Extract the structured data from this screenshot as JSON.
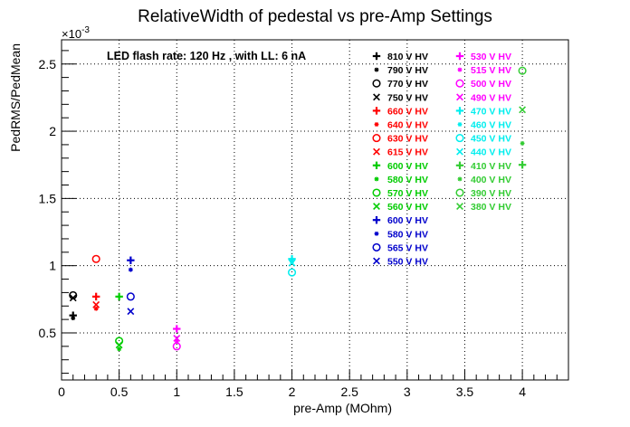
{
  "chart_data": {
    "type": "scatter",
    "title": "RelativeWidth of pedestal vs pre-Amp Settings",
    "xlabel": "pre-Amp (MOhm)",
    "ylabel": "PedRMS/PedMean",
    "y_exponent_label": "×10",
    "y_exponent_power": "-3",
    "annotation": "LED flash rate: 120 Hz , with LL: 6 nA",
    "xlim": [
      0,
      4.4
    ],
    "ylim": [
      0.15,
      2.68
    ],
    "x_ticks": [
      0,
      0.5,
      1,
      1.5,
      2,
      2.5,
      3,
      3.5,
      4
    ],
    "x_tick_labels": [
      "0",
      "0.5",
      "1",
      "1.5",
      "2",
      "2.5",
      "3",
      "3.5",
      "4"
    ],
    "y_ticks": [
      0.5,
      1,
      1.5,
      2,
      2.5
    ],
    "y_tick_labels": [
      "0.5",
      "1",
      "1.5",
      "2",
      "2.5"
    ],
    "grid": true,
    "legend_placement": "top-right",
    "series": [
      {
        "name": "810 V HV",
        "marker": "plus",
        "color": "#000000",
        "points": [
          [
            0.1,
            0.63
          ]
        ]
      },
      {
        "name": "790 V HV",
        "marker": "star",
        "color": "#000000",
        "points": [
          [
            0.1,
            0.61
          ]
        ]
      },
      {
        "name": "770 V HV",
        "marker": "circle",
        "color": "#000000",
        "points": [
          [
            0.1,
            0.78
          ]
        ]
      },
      {
        "name": "750 V HV",
        "marker": "cross",
        "color": "#000000",
        "points": [
          [
            0.1,
            0.76
          ]
        ]
      },
      {
        "name": "660 V HV",
        "marker": "plus",
        "color": "#ff0000",
        "points": [
          [
            0.3,
            0.77
          ]
        ]
      },
      {
        "name": "640 V HV",
        "marker": "star",
        "color": "#ff0000",
        "points": [
          [
            0.3,
            0.68
          ]
        ]
      },
      {
        "name": "630 V HV",
        "marker": "circle",
        "color": "#ff0000",
        "points": [
          [
            0.3,
            1.05
          ]
        ]
      },
      {
        "name": "615 V HV",
        "marker": "cross",
        "color": "#ff0000",
        "points": [
          [
            0.3,
            0.71
          ]
        ]
      },
      {
        "name": "600 V HV",
        "marker": "plus",
        "color": "#00cc00",
        "points": [
          [
            0.5,
            0.77
          ]
        ]
      },
      {
        "name": "580 V HV",
        "marker": "star",
        "color": "#00cc00",
        "points": [
          [
            0.5,
            0.38
          ]
        ]
      },
      {
        "name": "570 V HV",
        "marker": "circle",
        "color": "#00cc00",
        "points": [
          [
            0.5,
            0.44
          ]
        ]
      },
      {
        "name": "560 V HV",
        "marker": "cross",
        "color": "#00cc00",
        "points": [
          [
            0.5,
            0.41
          ]
        ]
      },
      {
        "name": "600 V HV",
        "marker": "plus",
        "color": "#0000cc",
        "points": [
          [
            0.6,
            1.04
          ]
        ]
      },
      {
        "name": "580 V HV",
        "marker": "star",
        "color": "#0000cc",
        "points": [
          [
            0.6,
            0.97
          ]
        ]
      },
      {
        "name": "565 V HV",
        "marker": "circle",
        "color": "#0000cc",
        "points": [
          [
            0.6,
            0.77
          ]
        ]
      },
      {
        "name": "550 V HV",
        "marker": "cross",
        "color": "#0000cc",
        "points": [
          [
            0.6,
            0.66
          ]
        ]
      },
      {
        "name": "530 V HV",
        "marker": "plus",
        "color": "#ff00ff",
        "points": [
          [
            1.0,
            0.53
          ]
        ]
      },
      {
        "name": "515 V HV",
        "marker": "star",
        "color": "#ff00ff",
        "points": [
          [
            1.0,
            0.44
          ]
        ]
      },
      {
        "name": "500 V HV",
        "marker": "circle",
        "color": "#ff00ff",
        "points": [
          [
            1.0,
            0.4
          ]
        ]
      },
      {
        "name": "490 V HV",
        "marker": "cross",
        "color": "#ff00ff",
        "points": [
          [
            1.0,
            0.46
          ]
        ]
      },
      {
        "name": "470 V HV",
        "marker": "plus",
        "color": "#00eeee",
        "points": [
          [
            2.0,
            1.05
          ]
        ]
      },
      {
        "name": "460 V HV",
        "marker": "star",
        "color": "#00eeee",
        "points": [
          [
            2.0,
            1.03
          ]
        ]
      },
      {
        "name": "450 V HV",
        "marker": "circle",
        "color": "#00eeee",
        "points": [
          [
            2.0,
            0.95
          ]
        ]
      },
      {
        "name": "440 V HV",
        "marker": "cross",
        "color": "#00eeee",
        "points": [
          [
            2.0,
            1.02
          ]
        ]
      },
      {
        "name": "410 V HV",
        "marker": "plus",
        "color": "#33cc33",
        "points": [
          [
            4.0,
            1.75
          ]
        ]
      },
      {
        "name": "400 V HV",
        "marker": "star",
        "color": "#33cc33",
        "points": [
          [
            4.0,
            1.91
          ]
        ]
      },
      {
        "name": "390 V HV",
        "marker": "circle",
        "color": "#33cc33",
        "points": [
          [
            4.0,
            2.45
          ]
        ]
      },
      {
        "name": "380 V HV",
        "marker": "cross",
        "color": "#33cc33",
        "points": [
          [
            4.0,
            2.16
          ]
        ]
      }
    ]
  }
}
